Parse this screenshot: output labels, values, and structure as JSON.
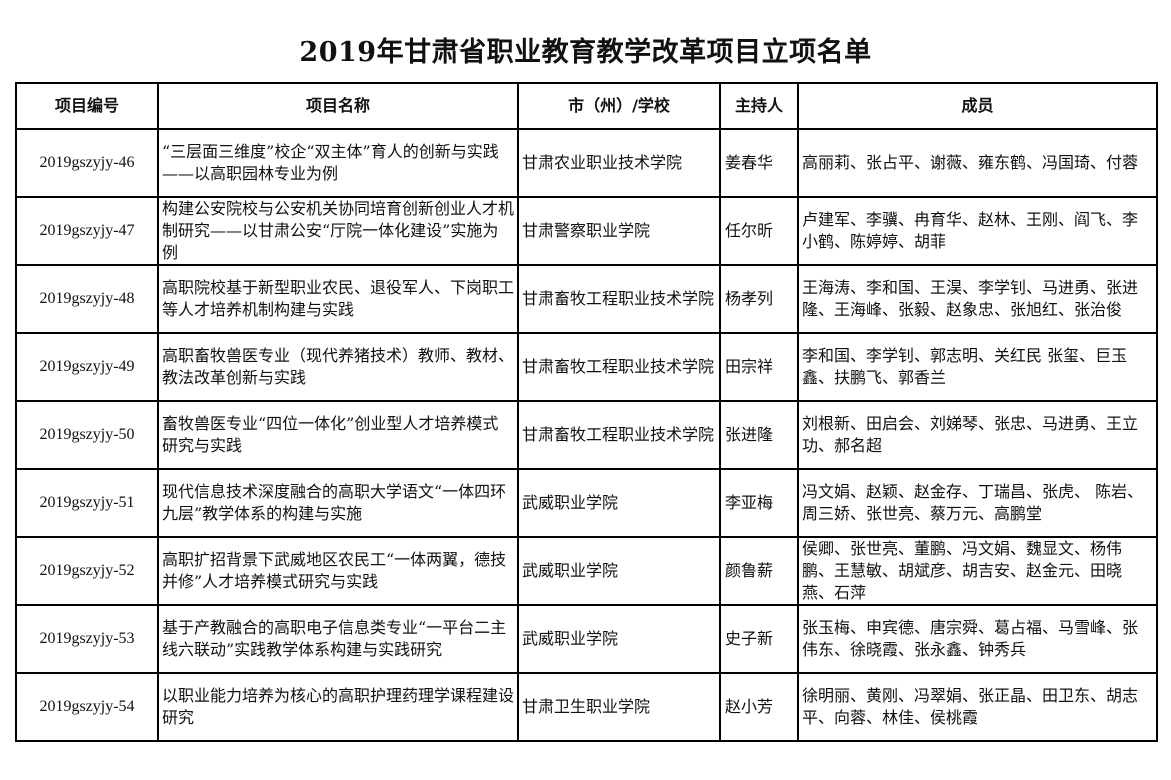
{
  "title": "2019年甘肃省职业教育教学改革项目立项名单",
  "columns": [
    "项目编号",
    "项目名称",
    "市（州）/学校",
    "主持人",
    "成员"
  ],
  "rows": [
    {
      "code": "2019gszyjy-46",
      "name": "“三层面三维度”校企“双主体”育人的创新与实践 ——以高职园林专业为例",
      "school": "甘肃农业职业技术学院",
      "host": "姜春华",
      "members": "高丽莉、张占平、谢薇、雍东鹤、冯国琦、付蓉"
    },
    {
      "code": "2019gszyjy-47",
      "name": "构建公安院校与公安机关协同培育创新创业人才机制研究——以甘肃公安“厅院一体化建设”实施为例",
      "school": "甘肃警察职业学院",
      "host": "任尔昕",
      "members": "卢建军、李骥、冉育华、赵林、王刚、阎飞、李小鹤、陈婷婷、胡菲"
    },
    {
      "code": "2019gszyjy-48",
      "name": "高职院校基于新型职业农民、退役军人、下岗职工等人才培养机制构建与实践",
      "school": "甘肃畜牧工程职业技术学院",
      "host": "杨孝列",
      "members": "王海涛、李和国、王淏、李学钊、马进勇、张进隆、王海峰、张毅、赵象忠、张旭红、张治俊"
    },
    {
      "code": "2019gszyjy-49",
      "name": "高职畜牧兽医专业（现代养猪技术）教师、教材、教法改革创新与实践",
      "school": "甘肃畜牧工程职业技术学院",
      "host": "田宗祥",
      "members": "李和国、李学钊、郭志明、关红民 张玺、巨玉鑫、扶鹏飞、郭香兰"
    },
    {
      "code": "2019gszyjy-50",
      "name": "畜牧兽医专业“四位一体化”创业型人才培养模式研究与实践",
      "school": "甘肃畜牧工程职业技术学院",
      "host": "张进隆",
      "members": "刘根新、田启会、刘娣琴、张忠、马进勇、王立功、郝名超"
    },
    {
      "code": "2019gszyjy-51",
      "name": "现代信息技术深度融合的高职大学语文“一体四环九层”教学体系的构建与实施",
      "school": "武威职业学院",
      "host": "李亚梅",
      "members": "冯文娟、赵颖、赵金存、丁瑞昌、张虎、 陈岩、周三娇、张世亮、蔡万元、高鹏堂"
    },
    {
      "code": "2019gszyjy-52",
      "name": "高职扩招背景下武威地区农民工“一体两翼，德技并修”人才培养模式研究与实践",
      "school": "武威职业学院",
      "host": "颜鲁薪",
      "members": "侯卿、张世亮、董鹏、冯文娟、魏显文、杨伟鹏、王慧敏、胡斌彦、胡吉安、赵金元、田晓燕、石萍"
    },
    {
      "code": "2019gszyjy-53",
      "name": "基于产教融合的高职电子信息类专业“一平台二主线六联动”实践教学体系构建与实践研究",
      "school": "武威职业学院",
      "host": "史子新",
      "members": "张玉梅、申宾德、唐宗舜、葛占福、马雪峰、张伟东、徐晓霞、张永鑫、钟秀兵"
    },
    {
      "code": "2019gszyjy-54",
      "name": "以职业能力培养为核心的高职护理药理学课程建设研究",
      "school": "甘肃卫生职业学院",
      "host": "赵小芳",
      "members": "徐明丽、黄刚、冯翠娟、张正晶、田卫东、胡志平、向蓉、林佳、侯桃霞"
    }
  ]
}
